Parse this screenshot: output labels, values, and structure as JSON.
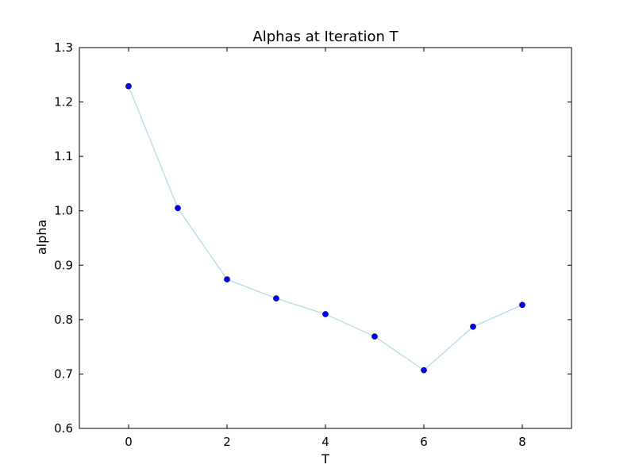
{
  "chart_data": {
    "type": "line",
    "title": "Alphas at Iteration T",
    "xlabel": "T",
    "ylabel": "alpha",
    "xlim": [
      -1,
      9
    ],
    "ylim": [
      0.6,
      1.3
    ],
    "xticks": [
      0,
      2,
      4,
      6,
      8
    ],
    "yticks": [
      0.6,
      0.7,
      0.8,
      0.9,
      1.0,
      1.1,
      1.2,
      1.3
    ],
    "xtick_labels": [
      "0",
      "2",
      "4",
      "6",
      "8"
    ],
    "ytick_labels": [
      "0.6",
      "0.7",
      "0.8",
      "0.9",
      "1.0",
      "1.1",
      "1.2",
      "1.3"
    ],
    "grid": false,
    "legend": "none",
    "series": [
      {
        "x": [
          0,
          1,
          2,
          3,
          4,
          5,
          6,
          7,
          8
        ],
        "values": [
          1.229,
          1.005,
          0.874,
          0.839,
          0.81,
          0.769,
          0.707,
          0.787,
          0.827
        ],
        "line_color": "#add8e6",
        "marker_color": "#0000ff"
      }
    ]
  }
}
